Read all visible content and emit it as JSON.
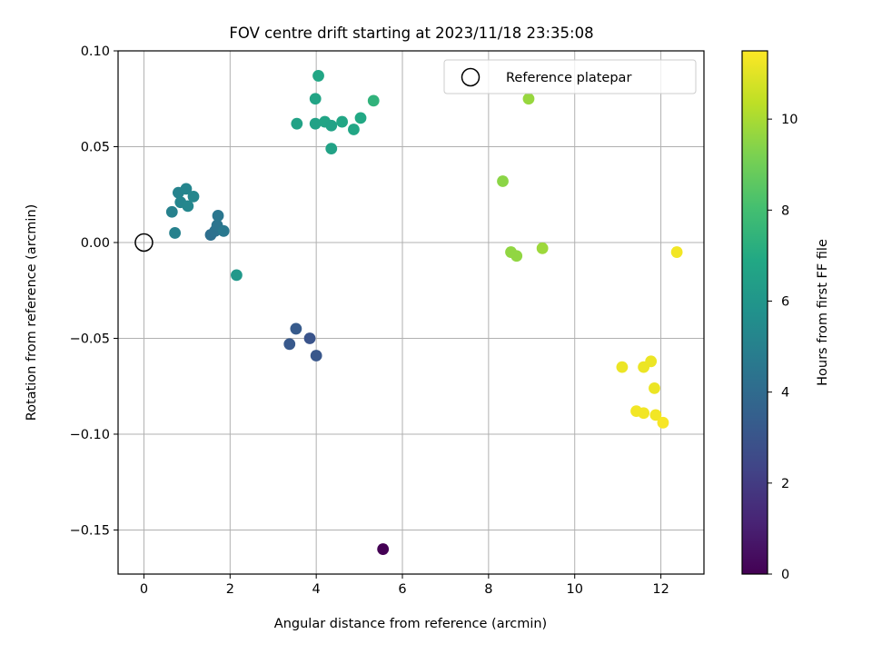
{
  "chart_data": {
    "type": "scatter",
    "title": "FOV centre drift starting at 2023/11/18 23:35:08",
    "xlabel": "Angular distance from reference (arcmin)",
    "ylabel": "Rotation from reference (arcmin)",
    "xlim": [
      -0.6,
      13.0
    ],
    "ylim": [
      -0.173,
      0.1
    ],
    "x_ticks": [
      0,
      2,
      4,
      6,
      8,
      10,
      12
    ],
    "x_tick_labels": [
      "0",
      "2",
      "4",
      "6",
      "8",
      "10",
      "12"
    ],
    "y_ticks": [
      0.1,
      0.05,
      0.0,
      -0.05,
      -0.1,
      -0.15
    ],
    "y_tick_labels": [
      "0.10",
      "0.05",
      "0.00",
      "−0.05",
      "−0.10",
      "−0.15"
    ],
    "grid": true,
    "legend": {
      "position": "upper right",
      "entries": [
        "Reference platepar"
      ]
    },
    "reference_point": {
      "x": 0.0,
      "y": 0.0
    },
    "colorbar": {
      "label": "Hours from first FF file",
      "range": [
        0,
        11.5
      ],
      "ticks": [
        0,
        2,
        4,
        6,
        8,
        10
      ],
      "tick_labels": [
        "0",
        "2",
        "4",
        "6",
        "8",
        "10"
      ],
      "colormap": "viridis"
    },
    "points": [
      {
        "x": 5.55,
        "y": -0.16,
        "h": 0.0
      },
      {
        "x": 3.38,
        "y": -0.053,
        "h": 3.2
      },
      {
        "x": 3.53,
        "y": -0.045,
        "h": 3.3
      },
      {
        "x": 3.85,
        "y": -0.05,
        "h": 3.0
      },
      {
        "x": 4.0,
        "y": -0.059,
        "h": 3.1
      },
      {
        "x": 1.55,
        "y": 0.004,
        "h": 4.2
      },
      {
        "x": 1.65,
        "y": 0.006,
        "h": 4.3
      },
      {
        "x": 1.7,
        "y": 0.009,
        "h": 4.4
      },
      {
        "x": 1.72,
        "y": 0.014,
        "h": 4.5
      },
      {
        "x": 1.85,
        "y": 0.006,
        "h": 4.6
      },
      {
        "x": 0.65,
        "y": 0.016,
        "h": 5.0
      },
      {
        "x": 0.72,
        "y": 0.005,
        "h": 5.0
      },
      {
        "x": 0.8,
        "y": 0.026,
        "h": 5.1
      },
      {
        "x": 0.85,
        "y": 0.021,
        "h": 5.2
      },
      {
        "x": 0.98,
        "y": 0.028,
        "h": 5.2
      },
      {
        "x": 1.02,
        "y": 0.019,
        "h": 5.3
      },
      {
        "x": 1.15,
        "y": 0.024,
        "h": 5.3
      },
      {
        "x": 2.15,
        "y": -0.017,
        "h": 6.1
      },
      {
        "x": 3.55,
        "y": 0.062,
        "h": 6.6
      },
      {
        "x": 3.98,
        "y": 0.075,
        "h": 6.7
      },
      {
        "x": 4.05,
        "y": 0.087,
        "h": 6.8
      },
      {
        "x": 3.98,
        "y": 0.062,
        "h": 6.6
      },
      {
        "x": 4.2,
        "y": 0.063,
        "h": 6.7
      },
      {
        "x": 4.35,
        "y": 0.061,
        "h": 6.6
      },
      {
        "x": 4.35,
        "y": 0.049,
        "h": 6.6
      },
      {
        "x": 4.6,
        "y": 0.063,
        "h": 6.8
      },
      {
        "x": 4.87,
        "y": 0.059,
        "h": 6.8
      },
      {
        "x": 5.03,
        "y": 0.065,
        "h": 6.9
      },
      {
        "x": 5.33,
        "y": 0.074,
        "h": 7.4
      },
      {
        "x": 8.93,
        "y": 0.075,
        "h": 9.7
      },
      {
        "x": 8.33,
        "y": 0.032,
        "h": 9.5
      },
      {
        "x": 8.52,
        "y": -0.005,
        "h": 9.6
      },
      {
        "x": 8.65,
        "y": -0.007,
        "h": 9.6
      },
      {
        "x": 9.25,
        "y": -0.003,
        "h": 9.8
      },
      {
        "x": 12.37,
        "y": -0.005,
        "h": 11.3
      },
      {
        "x": 11.1,
        "y": -0.065,
        "h": 11.2
      },
      {
        "x": 11.6,
        "y": -0.065,
        "h": 11.2
      },
      {
        "x": 11.77,
        "y": -0.062,
        "h": 11.2
      },
      {
        "x": 11.85,
        "y": -0.076,
        "h": 11.2
      },
      {
        "x": 11.43,
        "y": -0.088,
        "h": 11.3
      },
      {
        "x": 11.6,
        "y": -0.089,
        "h": 11.3
      },
      {
        "x": 11.88,
        "y": -0.09,
        "h": 11.3
      },
      {
        "x": 12.05,
        "y": -0.094,
        "h": 11.4
      }
    ]
  }
}
